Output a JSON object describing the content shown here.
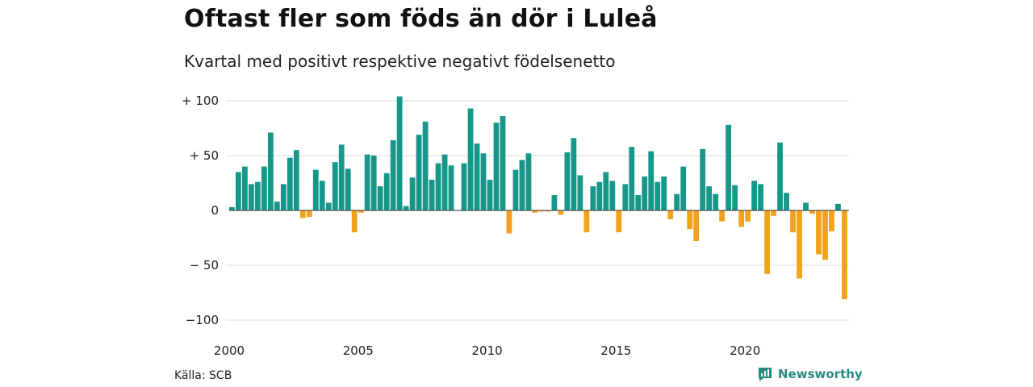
{
  "title": "Oftast fler som föds än dör i Luleå",
  "subtitle": "Kvartal med positivt respektive negativt födelsenetto",
  "source": "Källa: SCB",
  "brand": "Newsworthy",
  "brand_icon": "bar-chart-icon",
  "colors": {
    "positive": "#16978a",
    "negative": "#f3a21c",
    "grid": "#dcdcdc",
    "zero_line": "#333333",
    "brand": "#2a8a80"
  },
  "chart_data": {
    "type": "bar",
    "ylim": [
      -110,
      105
    ],
    "y_ticks": [
      {
        "value": 100,
        "label": "+ 100"
      },
      {
        "value": 50,
        "label": "+  50"
      },
      {
        "value": 0,
        "label": "0"
      },
      {
        "value": -50,
        "label": "− 50"
      },
      {
        "value": -100,
        "label": "−100"
      }
    ],
    "x_ticks": [
      "2000",
      "2005",
      "2010",
      "2015",
      "2020"
    ],
    "x_tick_positions": [
      2000,
      2005,
      2010,
      2015,
      2020
    ],
    "x_start": 2000,
    "categories": [
      "2000 K1",
      "2000 K2",
      "2000 K3",
      "2000 K4",
      "2001 K1",
      "2001 K2",
      "2001 K3",
      "2001 K4",
      "2002 K1",
      "2002 K2",
      "2002 K3",
      "2002 K4",
      "2003 K1",
      "2003 K2",
      "2003 K3",
      "2003 K4",
      "2004 K1",
      "2004 K2",
      "2004 K3",
      "2004 K4",
      "2005 K1",
      "2005 K2",
      "2005 K3",
      "2005 K4",
      "2006 K1",
      "2006 K2",
      "2006 K3",
      "2006 K4",
      "2007 K1",
      "2007 K2",
      "2007 K3",
      "2007 K4",
      "2008 K1",
      "2008 K2",
      "2008 K3",
      "2008 K4",
      "2009 K1",
      "2009 K2",
      "2009 K3",
      "2009 K4",
      "2010 K1",
      "2010 K2",
      "2010 K3",
      "2010 K4",
      "2011 K1",
      "2011 K2",
      "2011 K3",
      "2011 K4",
      "2012 K1",
      "2012 K2",
      "2012 K3",
      "2012 K4",
      "2013 K1",
      "2013 K2",
      "2013 K3",
      "2013 K4",
      "2014 K1",
      "2014 K2",
      "2014 K3",
      "2014 K4",
      "2015 K1",
      "2015 K2",
      "2015 K3",
      "2015 K4",
      "2016 K1",
      "2016 K2",
      "2016 K3",
      "2016 K4",
      "2017 K1",
      "2017 K2",
      "2017 K3",
      "2017 K4",
      "2018 K1",
      "2018 K2",
      "2018 K3",
      "2018 K4",
      "2019 K1",
      "2019 K2",
      "2019 K3",
      "2019 K4",
      "2020 K1",
      "2020 K2",
      "2020 K3",
      "2020 K4",
      "2021 K1",
      "2021 K2",
      "2021 K3",
      "2021 K4",
      "2022 K1",
      "2022 K2",
      "2022 K3",
      "2022 K4",
      "2023 K1",
      "2023 K2",
      "2023 K3",
      "2023 K4"
    ],
    "values": [
      3,
      35,
      40,
      24,
      26,
      40,
      71,
      8,
      24,
      48,
      55,
      -7,
      -6,
      37,
      27,
      7,
      44,
      60,
      38,
      -20,
      -2,
      51,
      50,
      22,
      34,
      64,
      104,
      4,
      30,
      69,
      81,
      28,
      43,
      51,
      41,
      0,
      43,
      93,
      61,
      52,
      28,
      80,
      86,
      -21,
      37,
      46,
      52,
      -2,
      -1,
      -1,
      14,
      -4,
      53,
      66,
      32,
      -20,
      22,
      26,
      35,
      27,
      -20,
      24,
      58,
      14,
      31,
      54,
      26,
      31,
      -8,
      15,
      40,
      -17,
      -28,
      56,
      22,
      15,
      -10,
      78,
      23,
      -15,
      -10,
      27,
      24,
      -58,
      -5,
      62,
      16,
      -20,
      -62,
      7,
      -3,
      -40,
      -45,
      -19,
      6,
      -81
    ]
  }
}
